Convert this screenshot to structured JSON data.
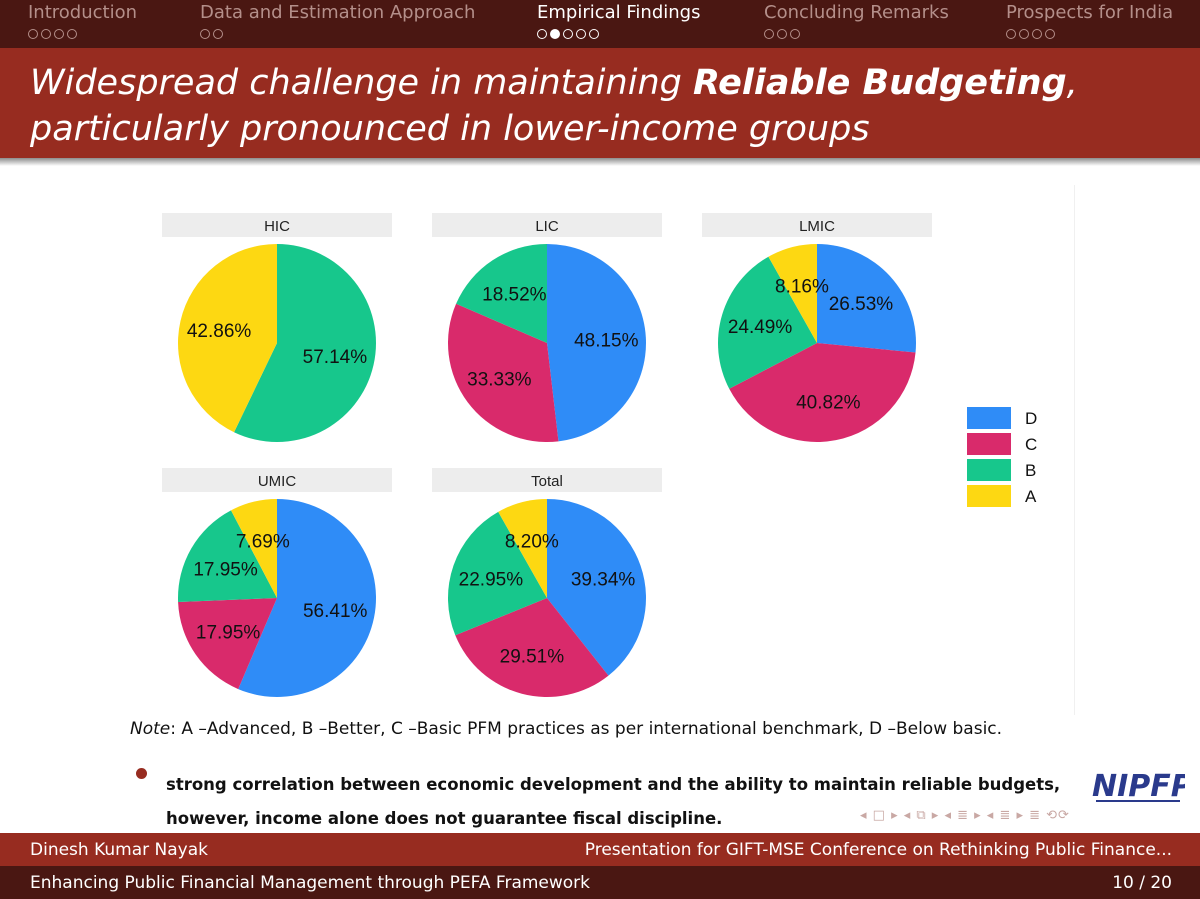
{
  "nav": {
    "sections": [
      {
        "label": "Introduction",
        "dots": 4,
        "filled": 0,
        "active": false
      },
      {
        "label": "Data and Estimation Approach",
        "dots": 2,
        "filled": 0,
        "active": false
      },
      {
        "label": "Empirical Findings",
        "dots": 5,
        "filled": 2,
        "active": true
      },
      {
        "label": "Concluding Remarks",
        "dots": 3,
        "filled": 0,
        "active": false
      },
      {
        "label": "Prospects for India",
        "dots": 4,
        "filled": 0,
        "active": false
      }
    ]
  },
  "title": {
    "pre": "Widespread challenge in maintaining ",
    "bold": "Reliable Budgeting",
    "post": ", particularly pronounced in lower-income groups"
  },
  "colors": {
    "D": "#2f8cf7",
    "C": "#d92a6b",
    "B": "#17c78c",
    "A": "#fdd812",
    "nav_bg": "#4a1712",
    "title_bg": "#972c20"
  },
  "chart_data": {
    "type": "pie",
    "legend": [
      "D",
      "C",
      "B",
      "A"
    ],
    "legend_position": "right",
    "panels": [
      {
        "name": "HIC",
        "values": {
          "D": 0,
          "C": 0,
          "B": 57.14,
          "A": 42.86
        },
        "labels": {
          "B": "57.14%",
          "A": "42.86%"
        }
      },
      {
        "name": "LIC",
        "values": {
          "D": 48.15,
          "C": 33.33,
          "B": 18.52,
          "A": 0
        },
        "labels": {
          "D": "48.15%",
          "C": "33.33%",
          "B": "18.52%"
        }
      },
      {
        "name": "LMIC",
        "values": {
          "D": 26.53,
          "C": 40.82,
          "B": 24.49,
          "A": 8.16
        },
        "labels": {
          "D": "26.53%",
          "C": "40.82%",
          "B": "24.49%",
          "A": "8.16%"
        }
      },
      {
        "name": "UMIC",
        "values": {
          "D": 56.41,
          "C": 17.95,
          "B": 17.95,
          "A": 7.69
        },
        "labels": {
          "D": "56.41%",
          "C": "17.95%",
          "B": "17.95%",
          "A": "7.69%"
        }
      },
      {
        "name": "Total",
        "values": {
          "D": 39.34,
          "C": 29.51,
          "B": 22.95,
          "A": 8.2
        },
        "labels": {
          "D": "39.34%",
          "C": "29.51%",
          "B": "22.95%",
          "A": "8.20%"
        }
      }
    ]
  },
  "note": {
    "label": "Note",
    "text": ": A –Advanced, B –Better, C –Basic PFM practices as per international benchmark, D –Below basic."
  },
  "bullet": "strong correlation between economic development and the ability to maintain reliable budgets, however, income alone does not guarantee fiscal discipline.",
  "logo_text": "NIPFP",
  "beamer_nav": "◂ □ ▸ ◂ ⧉ ▸ ◂ ≣ ▸ ◂ ≣ ▸  ≣  ⟲⟳",
  "footer": {
    "author": "Dinesh Kumar Nayak",
    "event": "Presentation for GIFT-MSE Conference on Rethinking Public Finance...",
    "talk": "Enhancing Public Financial Management through PEFA Framework",
    "page": "10 / 20"
  }
}
